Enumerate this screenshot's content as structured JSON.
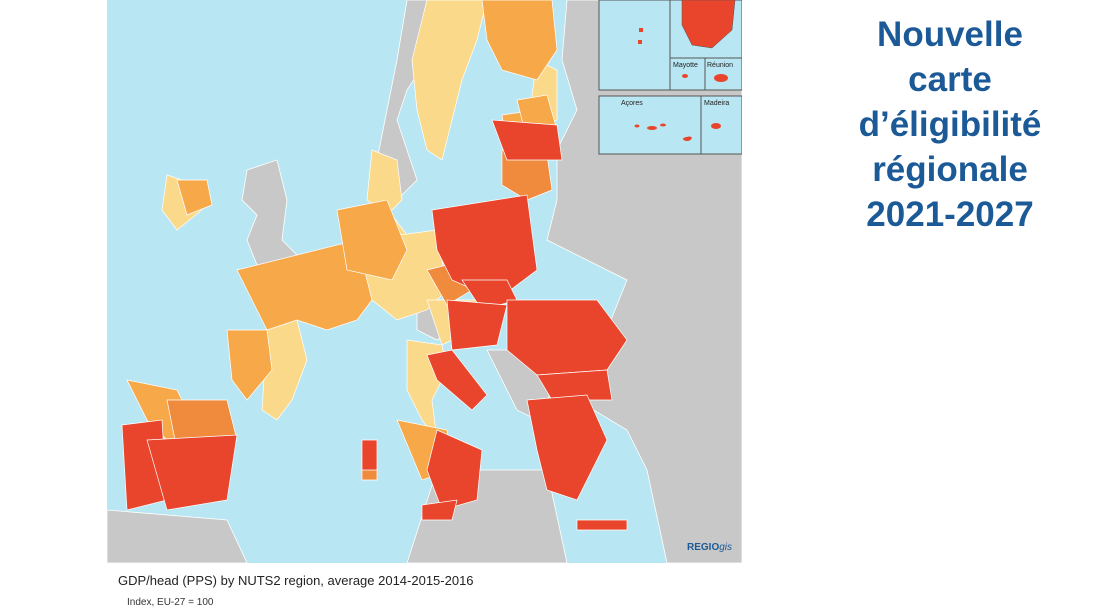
{
  "title": {
    "lines": [
      "Nouvelle",
      "carte",
      "d’éligibilité",
      "régionale",
      "2021-2027"
    ]
  },
  "map": {
    "caption": "GDP/head (PPS) by NUTS2 region, average 2014-2015-2016",
    "caption_sub": "Index, EU-27 = 100",
    "logo": {
      "brand": "REGIO",
      "suffix": "gis"
    },
    "insets": [
      "Mayotte",
      "Réunion",
      "Açores",
      "Madeira"
    ],
    "colors": {
      "sea": "#b9e6f3",
      "non_eu": "#c8c8c8",
      "less_developed": "#e8452c",
      "transition_lower": "#f08a3c",
      "transition_upper": "#f7a94a",
      "more_developed": "#fbd98a"
    }
  }
}
